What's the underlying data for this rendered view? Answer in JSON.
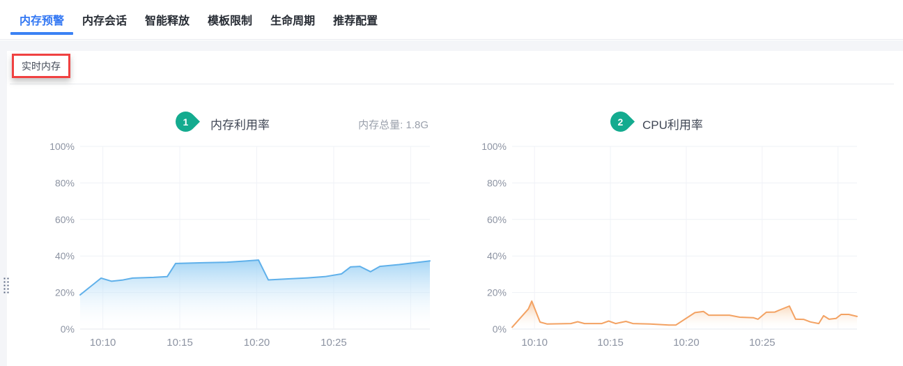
{
  "tabs": {
    "active_color": "#3277f3",
    "items": [
      {
        "label": "内存预警",
        "active": true
      },
      {
        "label": "内存会话",
        "active": false
      },
      {
        "label": "智能释放",
        "active": false
      },
      {
        "label": "模板限制",
        "active": false
      },
      {
        "label": "生命周期",
        "active": false
      },
      {
        "label": "推荐配置",
        "active": false
      }
    ]
  },
  "section": {
    "title": "实时内存",
    "annotation_color": "#f04141"
  },
  "chart_data": [
    {
      "type": "area",
      "badge": "1",
      "badge_color": "#14ab8f",
      "title": "内存利用率",
      "note": "内存总量: 1.8G",
      "line_color": "#5fb0ea",
      "fill_color": "#9dd1f4",
      "ylim": [
        0,
        100
      ],
      "grid": true,
      "y_ticks": [
        {
          "v": 0,
          "label": "0%"
        },
        {
          "v": 20,
          "label": "20%"
        },
        {
          "v": 40,
          "label": "40%"
        },
        {
          "v": 60,
          "label": "60%"
        },
        {
          "v": 80,
          "label": "80%"
        },
        {
          "v": 100,
          "label": "100%"
        }
      ],
      "x_ticks": [
        {
          "f": 0.065,
          "label": "10:10"
        },
        {
          "f": 0.285,
          "label": "10:15"
        },
        {
          "f": 0.505,
          "label": "10:20"
        },
        {
          "f": 0.725,
          "label": "10:25"
        },
        {
          "f": 0.945,
          "label": ""
        }
      ],
      "points": [
        [
          0,
          18.7
        ],
        [
          0.06,
          27.9
        ],
        [
          0.09,
          26.2
        ],
        [
          0.12,
          26.8
        ],
        [
          0.15,
          27.9
        ],
        [
          0.21,
          28.3
        ],
        [
          0.249,
          28.7
        ],
        [
          0.273,
          35.9
        ],
        [
          0.35,
          36.3
        ],
        [
          0.42,
          36.6
        ],
        [
          0.47,
          37.2
        ],
        [
          0.51,
          37.8
        ],
        [
          0.538,
          26.9
        ],
        [
          0.6,
          27.5
        ],
        [
          0.65,
          28.0
        ],
        [
          0.7,
          28.7
        ],
        [
          0.747,
          30.2
        ],
        [
          0.773,
          34.0
        ],
        [
          0.8,
          34.3
        ],
        [
          0.83,
          31.4
        ],
        [
          0.857,
          34.3
        ],
        [
          0.912,
          35.3
        ],
        [
          0.96,
          36.4
        ],
        [
          1,
          37.3
        ]
      ]
    },
    {
      "type": "area",
      "badge": "2",
      "badge_color": "#14ab8f",
      "title": "CPU利用率",
      "note": "",
      "line_color": "#f3a263",
      "fill_color": "#f7c497",
      "ylim": [
        0,
        100
      ],
      "grid": true,
      "y_ticks": [
        {
          "v": 0,
          "label": "0%"
        },
        {
          "v": 20,
          "label": "20%"
        },
        {
          "v": 40,
          "label": "40%"
        },
        {
          "v": 60,
          "label": "60%"
        },
        {
          "v": 80,
          "label": "80%"
        },
        {
          "v": 100,
          "label": "100%"
        }
      ],
      "x_ticks": [
        {
          "f": 0.065,
          "label": "10:10"
        },
        {
          "f": 0.285,
          "label": "10:15"
        },
        {
          "f": 0.505,
          "label": "10:20"
        },
        {
          "f": 0.725,
          "label": "10:25"
        },
        {
          "f": 0.945,
          "label": ""
        }
      ],
      "points": [
        [
          0,
          1.0
        ],
        [
          0.047,
          11.0
        ],
        [
          0.057,
          15.3
        ],
        [
          0.081,
          3.8
        ],
        [
          0.101,
          2.8
        ],
        [
          0.17,
          3.0
        ],
        [
          0.19,
          4.0
        ],
        [
          0.21,
          3.0
        ],
        [
          0.26,
          3.0
        ],
        [
          0.28,
          4.4
        ],
        [
          0.3,
          3.0
        ],
        [
          0.33,
          4.2
        ],
        [
          0.35,
          3.0
        ],
        [
          0.4,
          2.8
        ],
        [
          0.455,
          2.2
        ],
        [
          0.475,
          2.2
        ],
        [
          0.53,
          9.0
        ],
        [
          0.555,
          9.6
        ],
        [
          0.57,
          7.6
        ],
        [
          0.63,
          7.6
        ],
        [
          0.66,
          6.5
        ],
        [
          0.7,
          6.2
        ],
        [
          0.713,
          5.4
        ],
        [
          0.737,
          9.2
        ],
        [
          0.762,
          9.3
        ],
        [
          0.774,
          10.3
        ],
        [
          0.804,
          12.6
        ],
        [
          0.822,
          5.4
        ],
        [
          0.845,
          5.3
        ],
        [
          0.865,
          3.9
        ],
        [
          0.889,
          3.0
        ],
        [
          0.903,
          7.3
        ],
        [
          0.919,
          5.4
        ],
        [
          0.939,
          5.8
        ],
        [
          0.954,
          8.0
        ],
        [
          0.976,
          8.0
        ],
        [
          1,
          6.9
        ]
      ]
    }
  ]
}
